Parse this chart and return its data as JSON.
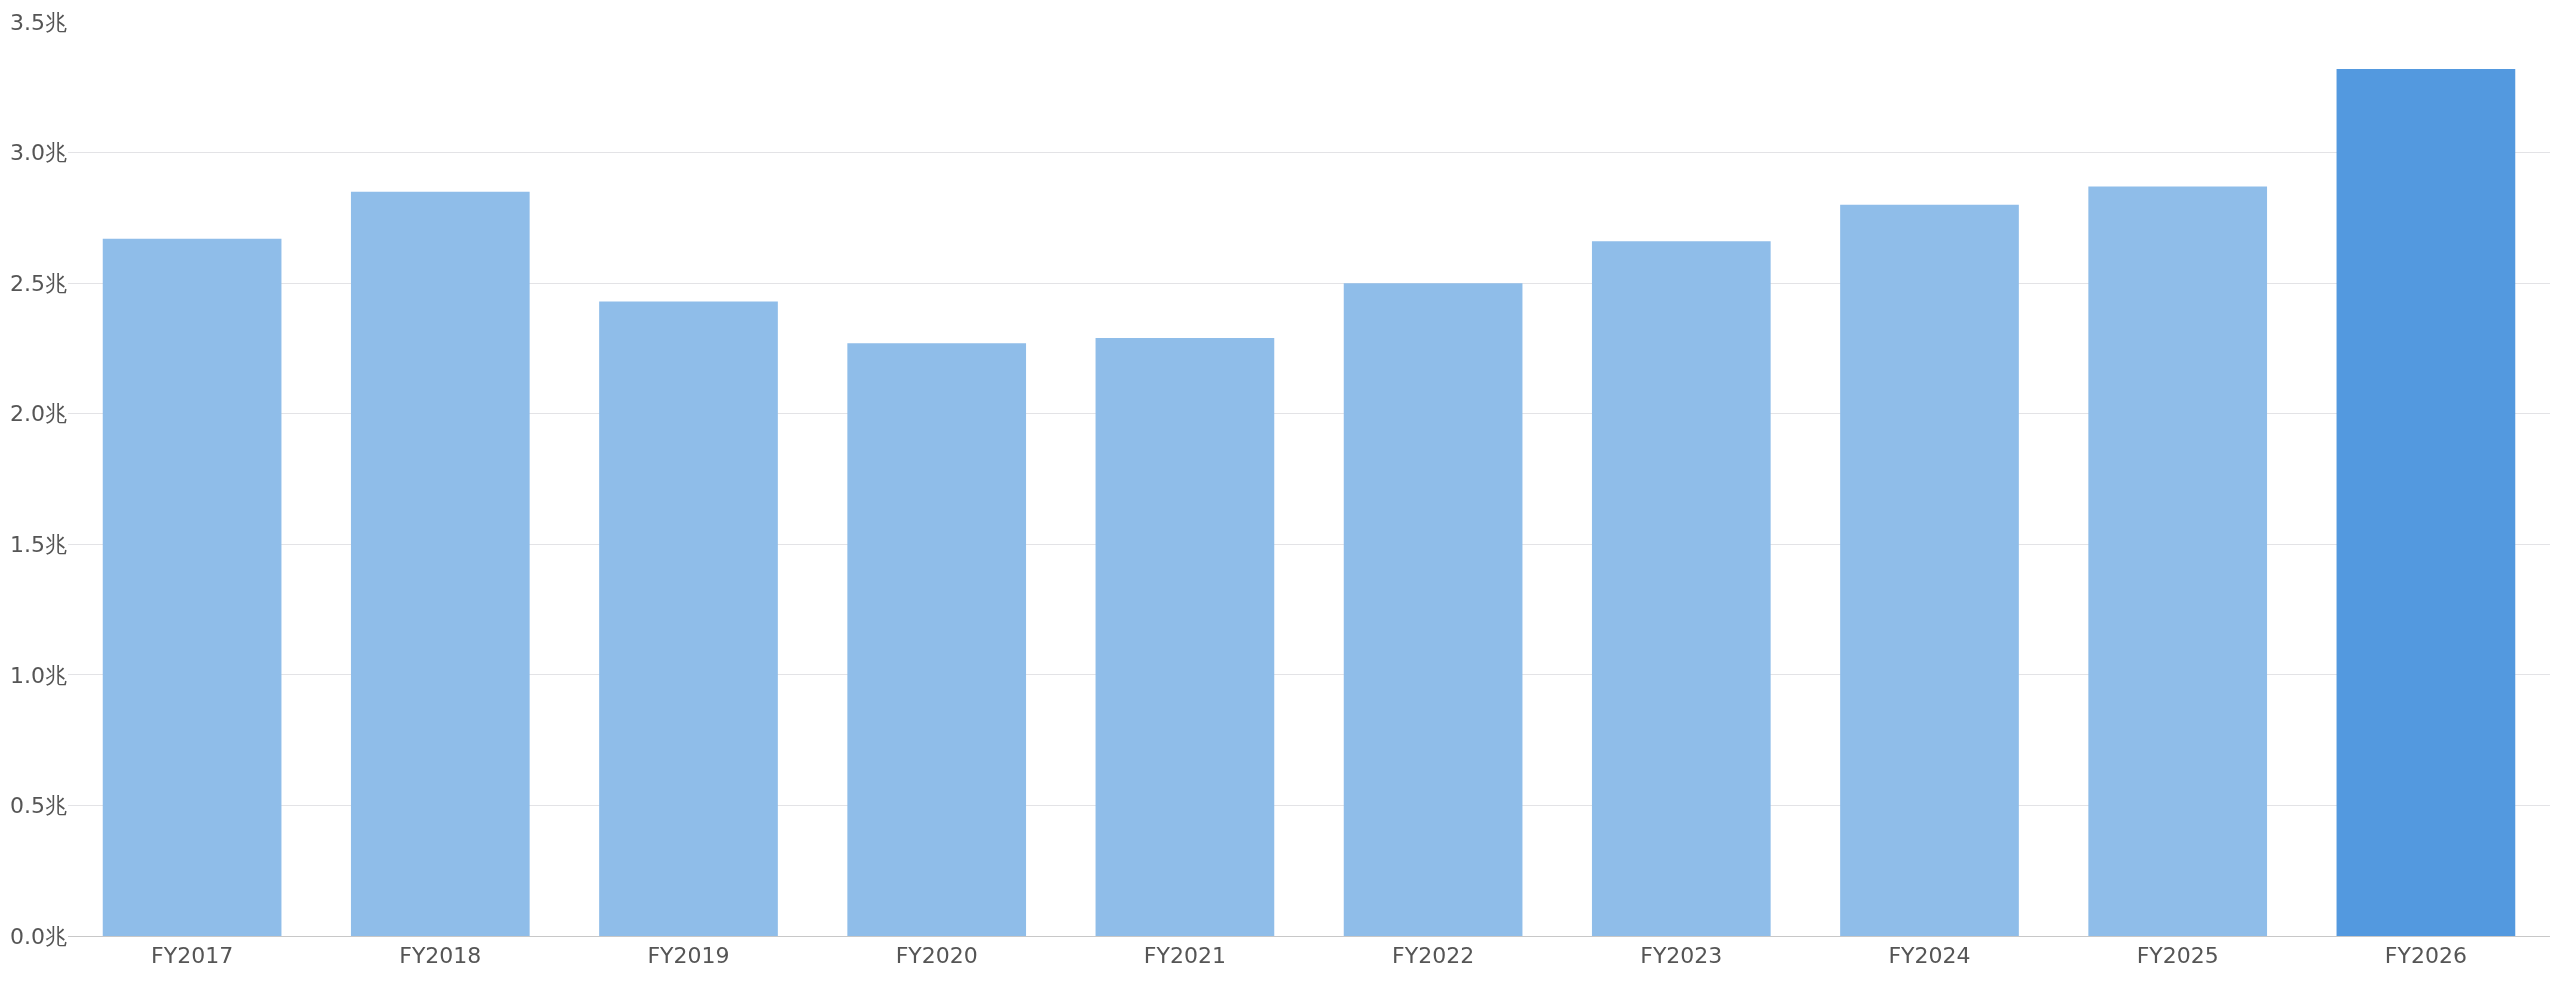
{
  "chart_data": {
    "type": "bar",
    "categories": [
      "FY2017",
      "FY2018",
      "FY2019",
      "FY2020",
      "FY2021",
      "FY2022",
      "FY2023",
      "FY2024",
      "FY2025",
      "FY2026"
    ],
    "values": [
      2.67,
      2.85,
      2.43,
      2.27,
      2.29,
      2.5,
      2.66,
      2.8,
      2.87,
      3.32
    ],
    "colors": [
      "#8fbde9",
      "#8fbde9",
      "#8fbde9",
      "#8fbde9",
      "#8fbde9",
      "#8fbde9",
      "#8fbde9",
      "#8fbde9",
      "#8fbde9",
      "#5399df"
    ],
    "ylim": [
      0,
      3.5
    ],
    "yticks": [
      {
        "value": 0,
        "label": "0.0兆"
      },
      {
        "value": 0.5,
        "label": "0.5兆"
      },
      {
        "value": 1,
        "label": "1.0兆"
      },
      {
        "value": 1.5,
        "label": "1.5兆"
      },
      {
        "value": 2,
        "label": "2.0兆"
      },
      {
        "value": 2.5,
        "label": "2.5兆"
      },
      {
        "value": 3,
        "label": "3.0兆"
      },
      {
        "value": 3.5,
        "label": "3.5兆"
      }
    ],
    "grid": "y"
  }
}
